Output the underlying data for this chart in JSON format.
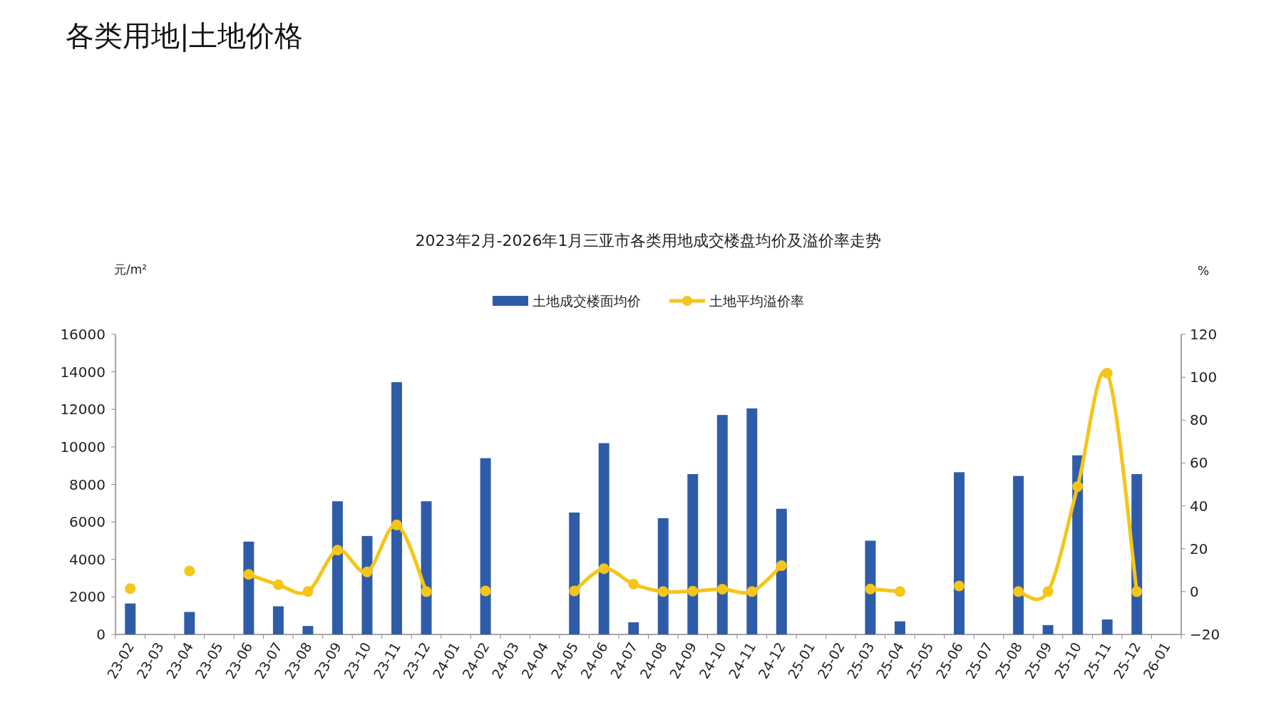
{
  "chart_data": {
    "type": "bar",
    "title": "2023年2月-2026年1月三亚市各类用地成交楼盘均价及溢价率走势",
    "ylabel": "元/m²",
    "y2label": "%",
    "annotations": [
      "各类用地|土地价格"
    ],
    "categories": [
      "23-02",
      "23-03",
      "23-04",
      "23-05",
      "23-06",
      "23-07",
      "23-08",
      "23-09",
      "23-10",
      "23-11",
      "23-12",
      "24-01",
      "24-02",
      "24-03",
      "24-04",
      "24-05",
      "24-06",
      "24-07",
      "24-08",
      "24-09",
      "24-10",
      "24-11",
      "24-12",
      "25-01",
      "25-02",
      "25-03",
      "25-04",
      "25-05",
      "25-06",
      "25-07",
      "25-08",
      "25-09",
      "25-10",
      "25-11",
      "25-12",
      "26-01"
    ],
    "series": [
      {
        "name": "土地成交楼面均价",
        "color": "#2f5ca8",
        "values": [
          1650,
          null,
          1200,
          null,
          4950,
          1500,
          450,
          7100,
          5250,
          13450,
          7100,
          null,
          9400,
          null,
          null,
          6500,
          10200,
          650,
          6200,
          8550,
          11700,
          12050,
          6700,
          null,
          null,
          5000,
          700,
          null,
          8650,
          null,
          8450,
          500,
          9550,
          800,
          8550,
          null
        ]
      },
      {
        "name": "土地平均溢价率",
        "type": "line",
        "axis": "y2",
        "color": "#f5c518",
        "marker": "circle",
        "values": [
          1.4,
          null,
          9.6,
          null,
          8.0,
          3.2,
          0,
          19.3,
          9.2,
          31.1,
          0,
          null,
          0.3,
          null,
          null,
          0.3,
          10.7,
          3.5,
          0,
          0.2,
          1.1,
          0,
          12.1,
          null,
          null,
          1.2,
          0,
          null,
          2.6,
          null,
          0,
          0,
          49,
          101.9,
          0,
          null
        ]
      }
    ],
    "ylim": [
      0,
      16000
    ],
    "yticks": [
      0,
      2000,
      4000,
      6000,
      8000,
      10000,
      12000,
      14000,
      16000
    ],
    "y2lim": [
      -20,
      120
    ],
    "y2ticks": [
      -20,
      0,
      20,
      40,
      60,
      80,
      100,
      120
    ],
    "legend": "top"
  }
}
